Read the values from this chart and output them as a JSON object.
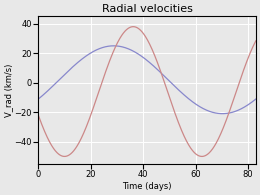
{
  "title": "Radial velocities",
  "xlabel": "Time (days)",
  "ylabel": "V_rad (km/s)",
  "xlim": [
    0,
    83
  ],
  "ylim": [
    -55,
    45
  ],
  "yticks": [
    -40,
    -20,
    0,
    20,
    40
  ],
  "xticks": [
    0,
    20,
    40,
    60,
    80
  ],
  "blue_color": "#8888cc",
  "red_color": "#cc8888",
  "background_color": "#e8e8e8",
  "grid_color": "#ffffff",
  "period": 83,
  "title_fontsize": 8
}
